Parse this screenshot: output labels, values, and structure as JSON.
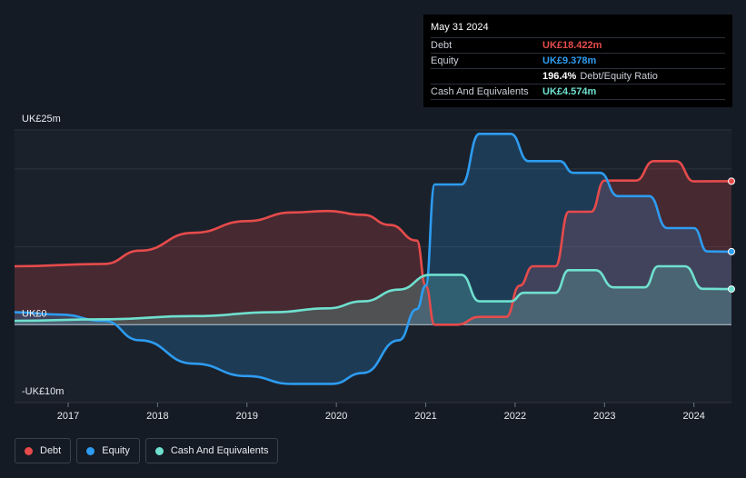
{
  "tooltip": {
    "date": "May 31 2024",
    "rows": [
      {
        "label": "Debt",
        "value": "UK£18.422m",
        "color": "#e64b4b",
        "suffix": ""
      },
      {
        "label": "Equity",
        "value": "UK£9.378m",
        "color": "#2d9cf0",
        "suffix": ""
      },
      {
        "label": "",
        "value": "196.4%",
        "color": "#ffffff",
        "suffix": "Debt/Equity Ratio"
      },
      {
        "label": "Cash And Equivalents",
        "value": "UK£4.574m",
        "color": "#6fe0cf",
        "suffix": ""
      }
    ]
  },
  "legend": [
    {
      "label": "Debt",
      "color": "#e64b4b"
    },
    {
      "label": "Equity",
      "color": "#2d9cf0"
    },
    {
      "label": "Cash And Equivalents",
      "color": "#6fe0cf"
    }
  ],
  "chart_data": {
    "type": "area",
    "y_tick_labels": [
      "UK£25m",
      "UK£0",
      "-UK£10m"
    ],
    "y_ticks": [
      25,
      0,
      -10
    ],
    "ylim": [
      -10,
      25
    ],
    "xlim": [
      2016.4,
      2024.42
    ],
    "x_ticks": [
      2017,
      2018,
      2019,
      2020,
      2021,
      2022,
      2023,
      2024
    ],
    "x_tick_labels": [
      "2017",
      "2018",
      "2019",
      "2020",
      "2021",
      "2022",
      "2023",
      "2024"
    ],
    "highlight_date": "May 31 2024",
    "series": [
      {
        "name": "Debt",
        "color": "#e64b4b",
        "points": [
          [
            2016.4,
            7.5
          ],
          [
            2017.4,
            7.8
          ],
          [
            2017.8,
            9.5
          ],
          [
            2018.4,
            11.8
          ],
          [
            2019.0,
            13.3
          ],
          [
            2019.5,
            14.4
          ],
          [
            2019.9,
            14.6
          ],
          [
            2020.3,
            14.1
          ],
          [
            2020.6,
            12.8
          ],
          [
            2020.9,
            10.8
          ],
          [
            2021.0,
            5.0
          ],
          [
            2021.1,
            0.0
          ],
          [
            2021.35,
            0.0
          ],
          [
            2021.6,
            1.0
          ],
          [
            2021.9,
            1.0
          ],
          [
            2022.05,
            5.0
          ],
          [
            2022.2,
            7.5
          ],
          [
            2022.45,
            7.5
          ],
          [
            2022.6,
            14.5
          ],
          [
            2022.85,
            14.5
          ],
          [
            2023.0,
            18.5
          ],
          [
            2023.35,
            18.5
          ],
          [
            2023.55,
            21.0
          ],
          [
            2023.8,
            21.0
          ],
          [
            2024.0,
            18.4
          ],
          [
            2024.42,
            18.42
          ]
        ]
      },
      {
        "name": "Equity",
        "color": "#2d9cf0",
        "points": [
          [
            2016.4,
            1.6
          ],
          [
            2016.9,
            1.3
          ],
          [
            2017.4,
            0.5
          ],
          [
            2017.8,
            -2.0
          ],
          [
            2018.4,
            -5.0
          ],
          [
            2019.0,
            -6.6
          ],
          [
            2019.5,
            -7.6
          ],
          [
            2019.95,
            -7.6
          ],
          [
            2020.3,
            -6.2
          ],
          [
            2020.7,
            -2.0
          ],
          [
            2020.9,
            2.0
          ],
          [
            2021.0,
            5.0
          ],
          [
            2021.1,
            18.0
          ],
          [
            2021.4,
            18.0
          ],
          [
            2021.6,
            24.5
          ],
          [
            2021.95,
            24.5
          ],
          [
            2022.15,
            21.0
          ],
          [
            2022.5,
            21.0
          ],
          [
            2022.65,
            19.5
          ],
          [
            2022.95,
            19.5
          ],
          [
            2023.15,
            16.5
          ],
          [
            2023.5,
            16.5
          ],
          [
            2023.7,
            12.4
          ],
          [
            2024.0,
            12.4
          ],
          [
            2024.15,
            9.4
          ],
          [
            2024.42,
            9.378
          ]
        ]
      },
      {
        "name": "Cash And Equivalents",
        "color": "#6fe0cf",
        "points": [
          [
            2016.4,
            0.5
          ],
          [
            2017.4,
            0.7
          ],
          [
            2018.4,
            1.1
          ],
          [
            2019.3,
            1.6
          ],
          [
            2019.9,
            2.1
          ],
          [
            2020.3,
            3.0
          ],
          [
            2020.7,
            4.5
          ],
          [
            2021.05,
            6.4
          ],
          [
            2021.4,
            6.4
          ],
          [
            2021.6,
            3.0
          ],
          [
            2021.95,
            3.0
          ],
          [
            2022.1,
            4.1
          ],
          [
            2022.45,
            4.1
          ],
          [
            2022.6,
            7.0
          ],
          [
            2022.9,
            7.0
          ],
          [
            2023.1,
            4.8
          ],
          [
            2023.45,
            4.8
          ],
          [
            2023.6,
            7.5
          ],
          [
            2023.9,
            7.5
          ],
          [
            2024.1,
            4.6
          ],
          [
            2024.42,
            4.574
          ]
        ]
      }
    ]
  }
}
